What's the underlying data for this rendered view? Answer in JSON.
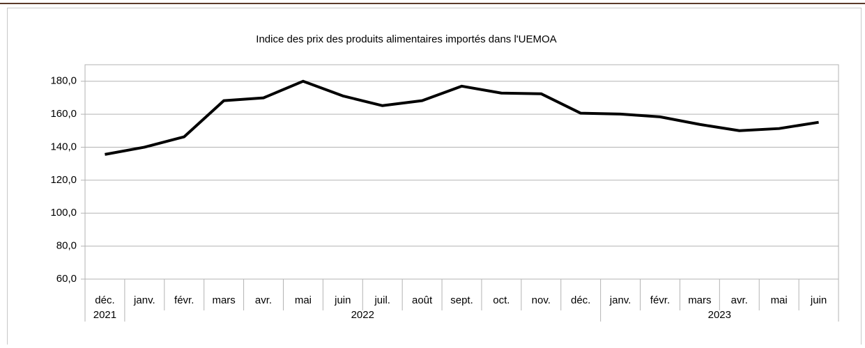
{
  "chart_data": {
    "type": "line",
    "title": "Indice des prix des produits alimentaires importés dans l'UEMOA",
    "categories": [
      "déc.",
      "janv.",
      "févr.",
      "mars",
      "avr.",
      "mai",
      "juin",
      "juil.",
      "août",
      "sept.",
      "oct.",
      "nov.",
      "déc.",
      "janv.",
      "févr.",
      "mars",
      "avr.",
      "mai",
      "juin"
    ],
    "category_groups": [
      {
        "label": "2021",
        "count": 1
      },
      {
        "label": "2022",
        "count": 12
      },
      {
        "label": "2023",
        "count": 6
      }
    ],
    "series": [
      {
        "color": "#000000",
        "values": [
          135.6,
          140.0,
          146.3,
          168.2,
          169.9,
          180.0,
          171.1,
          165.2,
          168.2,
          177.0,
          172.8,
          172.4,
          160.6,
          160.1,
          158.4,
          153.8,
          150.0,
          151.3,
          155.1
        ]
      }
    ],
    "ylim": [
      60,
      190
    ],
    "yticks": [
      {
        "value": 60,
        "label": "60,0"
      },
      {
        "value": 80,
        "label": "80,0"
      },
      {
        "value": 100,
        "label": "100,0"
      },
      {
        "value": 120,
        "label": "120,0"
      },
      {
        "value": 140,
        "label": "140,0"
      },
      {
        "value": 160,
        "label": "160,0"
      },
      {
        "value": 180,
        "label": "180,0"
      }
    ],
    "grid": true
  }
}
